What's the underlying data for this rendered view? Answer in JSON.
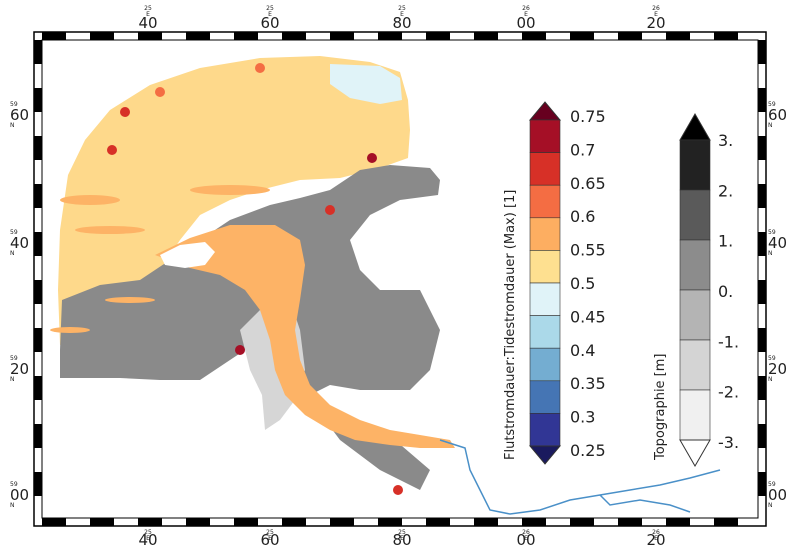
{
  "map": {
    "lon_ticks": [
      {
        "major": "40",
        "minor": "25",
        "suffix": "E"
      },
      {
        "major": "60",
        "minor": "25",
        "suffix": "E"
      },
      {
        "major": "80",
        "minor": "25",
        "suffix": "E"
      },
      {
        "major": "00",
        "minor": "26",
        "suffix": "E"
      },
      {
        "major": "20",
        "minor": "26",
        "suffix": "E"
      }
    ],
    "lat_ticks": [
      {
        "major": "60",
        "minor": "59",
        "suffix": "N"
      },
      {
        "major": "40",
        "minor": "59",
        "suffix": "N"
      },
      {
        "major": "20",
        "minor": "59",
        "suffix": "N"
      },
      {
        "major": "00",
        "minor": "59",
        "suffix": "N"
      }
    ]
  },
  "legend_ratio": {
    "title": "Flutstromdauer:Tidestromdauer (Max) [1]",
    "levels": [
      "0.75",
      "0.7",
      "0.65",
      "0.6",
      "0.55",
      "0.5",
      "0.45",
      "0.4",
      "0.35",
      "0.3",
      "0.25"
    ],
    "colors": [
      "#a50f26",
      "#d73027",
      "#f46d43",
      "#fdae61",
      "#fee090",
      "#e0f3f8",
      "#abd9e9",
      "#74add1",
      "#4575b4",
      "#313695"
    ],
    "over_color": "#67001f",
    "under_color": "#1a1a5e"
  },
  "legend_topo": {
    "title": "Topographie [m]",
    "levels": [
      "3.",
      "2.",
      "1.",
      "0.",
      "-1.",
      "-2.",
      "-3."
    ],
    "colors": [
      "#222222",
      "#5a5a5a",
      "#8c8c8c",
      "#b4b4b4",
      "#d4d4d4",
      "#f0f0f0"
    ],
    "over_color": "#000000",
    "under_color": "#ffffff"
  },
  "colors": {
    "sea_fill": "#fed98b",
    "channel_fill": "#fdb366",
    "shallow_fill": "#e0f3f8",
    "tidal_flat": "#8a8a8a",
    "high_flat": "#b9b9b9",
    "low_flat": "#d6d6d6",
    "river_line": "#4a90c8"
  }
}
